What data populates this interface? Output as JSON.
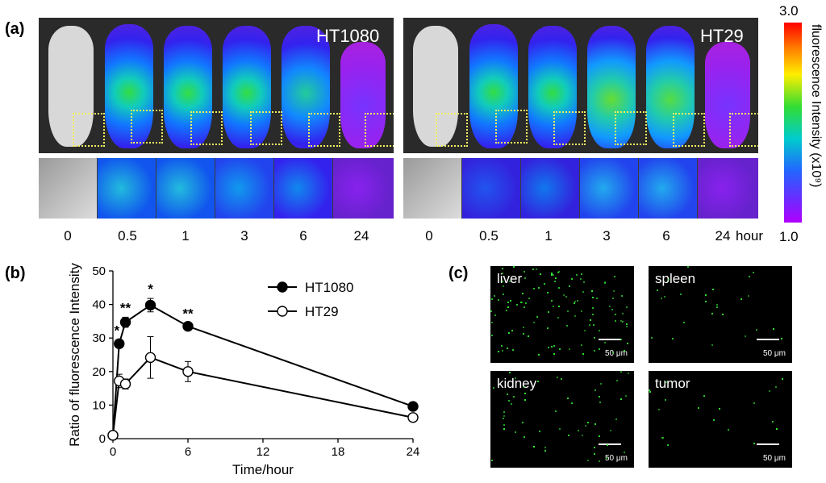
{
  "panel_a": {
    "label": "(a)",
    "left_title": "HT1080",
    "right_title": "HT29",
    "time_labels": [
      "0",
      "0.5",
      "1",
      "3",
      "6",
      "24"
    ],
    "time_unit": "hour",
    "colorbar": {
      "max": "3.0",
      "min": "1.0",
      "title": "fluorescence Intensity (x10⁹)"
    }
  },
  "panel_b": {
    "label": "(b)"
  },
  "panel_c": {
    "label": "(c)",
    "images": [
      {
        "label": "liver",
        "scale": "50 μm"
      },
      {
        "label": "spleen",
        "scale": "50 μm"
      },
      {
        "label": "kidney",
        "scale": "50 μm"
      },
      {
        "label": "tumor",
        "scale": "50 μm"
      }
    ]
  },
  "chart_data": {
    "type": "line",
    "title": "",
    "xlabel": "Time/hour",
    "ylabel": "Ratio of fluorescence Intensity",
    "xlim": [
      0,
      24
    ],
    "ylim": [
      0,
      50
    ],
    "xticks": [
      "0",
      "6",
      "12",
      "18",
      "24"
    ],
    "yticks": [
      "0",
      "10",
      "20",
      "30",
      "40",
      "50"
    ],
    "legend": "top-right",
    "series": [
      {
        "name": "HT1080",
        "marker": "filled-circle",
        "color": "#000000",
        "x": [
          0,
          0.5,
          1,
          3,
          6,
          24
        ],
        "y": [
          1,
          28.3,
          34.7,
          39.8,
          33.5,
          9.6
        ],
        "err": [
          0.5,
          1.2,
          1.5,
          2,
          1,
          0.6
        ],
        "annotations": [
          "",
          "*",
          "**",
          "*",
          "**",
          ""
        ]
      },
      {
        "name": "HT29",
        "marker": "open-circle",
        "color": "#000000",
        "x": [
          0,
          0.5,
          1,
          3,
          6,
          24
        ],
        "y": [
          1,
          17.2,
          16.3,
          24.2,
          20,
          6.3
        ],
        "err": [
          0.5,
          2,
          1.5,
          6.2,
          3,
          0.6
        ]
      }
    ]
  }
}
